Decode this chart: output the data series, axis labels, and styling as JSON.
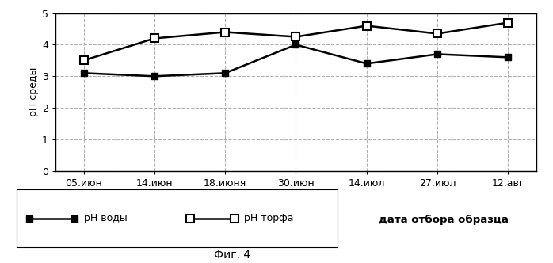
{
  "x_labels": [
    "05.июн",
    "14.июн",
    "18.июня",
    "30.июн",
    "14.июл",
    "27.июл",
    "12.авг"
  ],
  "ph_vody": [
    3.1,
    3.0,
    3.1,
    4.0,
    3.4,
    3.7,
    3.6
  ],
  "ph_torfa": [
    3.5,
    4.2,
    4.4,
    4.25,
    4.6,
    4.35,
    4.7
  ],
  "ylabel": "pH среды",
  "xlabel": "дата отбора образца",
  "ylim": [
    0,
    5
  ],
  "yticks": [
    0,
    1,
    2,
    3,
    4,
    5
  ],
  "legend_vody": "pH воды",
  "legend_torfa": "pH торфа",
  "caption": "Фиг. 4",
  "line_color": "#000000",
  "grid_color": "#b0b0b0",
  "bg_color": "#ffffff"
}
